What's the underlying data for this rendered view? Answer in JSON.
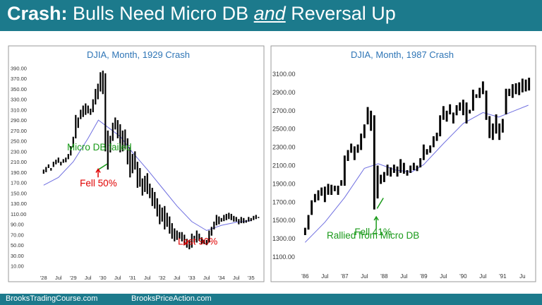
{
  "header": {
    "title_bold": "Crash:",
    "title_pre": "Bulls Need Micro DB",
    "title_em": "and",
    "title_post": "Reversal Up"
  },
  "footer": {
    "left": "BrooksTradingCourse.com",
    "right": "BrooksPriceAction.com"
  },
  "colors": {
    "header_bg": "#1c7a8c",
    "bar": "#000000",
    "moving_average": "#6f6fe0",
    "title_text": "#2e75b6",
    "annotation_red": "#e00000",
    "annotation_green": "#1a9a1a"
  },
  "chart_data": [
    {
      "type": "bar",
      "chart_style": "monthly price bars with moving average",
      "title": "DJIA, Month, 1929 Crash",
      "y_ticks": [
        "390.00",
        "370.00",
        "350.00",
        "330.00",
        "310.00",
        "290.00",
        "270.00",
        "250.00",
        "230.00",
        "210.00",
        "190.00",
        "170.00",
        "150.00",
        "130.00",
        "110.00",
        "90.00",
        "70.00",
        "50.00",
        "30.00",
        "10.00"
      ],
      "x_ticks": [
        "'28",
        "Jul",
        "'29",
        "Jul",
        "'30",
        "Jul",
        "'31",
        "Jul",
        "'32",
        "Jul",
        "'33",
        "Jul",
        "'34",
        "Jul",
        "'35"
      ],
      "ylim": [
        0,
        400
      ],
      "x_start": 1928,
      "annotations": [
        {
          "text": "Micro DB failed",
          "color": "green",
          "x": 1929.88,
          "y": 232
        },
        {
          "text": "Fell 50%",
          "color": "red",
          "x": 1929.85,
          "y": 163
        },
        {
          "text": "Lost 90%",
          "color": "red",
          "x": 1933.2,
          "y": 51
        }
      ],
      "series": [
        {
          "values": [
            [
              195,
              187
            ],
            [
              200,
              190
            ],
            [
              205,
              198
            ],
            [
              198,
              193
            ],
            [
              210,
              200
            ],
            [
              214,
              205
            ],
            [
              218,
              208
            ],
            [
              210,
              203
            ],
            [
              215,
              208
            ],
            [
              218,
              209
            ],
            [
              225,
              215
            ],
            [
              240,
              222
            ],
            [
              258,
              238
            ],
            [
              300,
              255
            ],
            [
              295,
              275
            ],
            [
              310,
              292
            ],
            [
              318,
              296
            ],
            [
              322,
              300
            ],
            [
              318,
              303
            ],
            [
              312,
              300
            ],
            [
              330,
              305
            ],
            [
              350,
              320
            ],
            [
              360,
              330
            ],
            [
              382,
              345
            ],
            [
              385,
              340
            ],
            [
              380,
              230
            ],
            [
              270,
              195
            ],
            [
              260,
              228
            ],
            [
              285,
              250
            ],
            [
              295,
              272
            ],
            [
              290,
              255
            ],
            [
              282,
              228
            ],
            [
              270,
              230
            ],
            [
              272,
              235
            ],
            [
              255,
              205
            ],
            [
              238,
              180
            ],
            [
              225,
              188
            ],
            [
              230,
              195
            ],
            [
              210,
              160
            ],
            [
              198,
              162
            ],
            [
              178,
              145
            ],
            [
              183,
              152
            ],
            [
              188,
              148
            ],
            [
              168,
              140
            ],
            [
              160,
              125
            ],
            [
              152,
              120
            ],
            [
              140,
              105
            ],
            [
              128,
              90
            ],
            [
              122,
              95
            ],
            [
              125,
              80
            ],
            [
              112,
              85
            ],
            [
              105,
              72
            ],
            [
              92,
              62
            ],
            [
              82,
              57
            ],
            [
              78,
              60
            ],
            [
              75,
              62
            ],
            [
              75,
              57
            ],
            [
              70,
              50
            ],
            [
              62,
              45
            ],
            [
              60,
              42
            ],
            [
              72,
              45
            ],
            [
              68,
              55
            ],
            [
              78,
              55
            ],
            [
              72,
              58
            ],
            [
              65,
              52
            ],
            [
              60,
              52
            ],
            [
              60,
              50
            ],
            [
              78,
              55
            ],
            [
              85,
              68
            ],
            [
              95,
              80
            ],
            [
              108,
              88
            ],
            [
              105,
              90
            ],
            [
              102,
              95
            ],
            [
              108,
              96
            ],
            [
              110,
              98
            ],
            [
              112,
              100
            ],
            [
              110,
              98
            ],
            [
              106,
              95
            ],
            [
              104,
              95
            ],
            [
              100,
              90
            ],
            [
              104,
              92
            ],
            [
              102,
              92
            ],
            [
              98,
              93
            ],
            [
              104,
              95
            ],
            [
              102,
              96
            ],
            [
              106,
              98
            ],
            [
              108,
              100
            ],
            [
              104,
              102
            ]
          ]
        },
        {
          "name": "",
          "values": [
            [
              1928,
              165
            ],
            [
              1928.5,
              180
            ],
            [
              1929,
              210
            ],
            [
              1929.5,
              255
            ],
            [
              1929.85,
              290
            ],
            [
              1930.2,
              275
            ],
            [
              1930.6,
              258
            ],
            [
              1931,
              228
            ],
            [
              1931.5,
              195
            ],
            [
              1932,
              160
            ],
            [
              1932.5,
              125
            ],
            [
              1933,
              95
            ],
            [
              1933.5,
              78
            ],
            [
              1934,
              88
            ],
            [
              1934.5,
              94
            ],
            [
              1935,
              97
            ]
          ]
        }
      ]
    },
    {
      "type": "bar",
      "chart_style": "monthly price bars with moving average",
      "title": "DJIA, Month, 1987 Crash",
      "y_ticks": [
        "3100.00",
        "2900.00",
        "2700.00",
        "2500.00",
        "2300.00",
        "2100.00",
        "1900.00",
        "1700.00",
        "1500.00",
        "1300.00",
        "1100.00"
      ],
      "x_ticks": [
        "'86",
        "Jul",
        "'87",
        "Jul",
        "'88",
        "Jul",
        "'89",
        "Jul",
        "'90",
        "Jul",
        "'91",
        "Ju"
      ],
      "ylim": [
        1000,
        3200
      ],
      "x_start": 1986,
      "annotations": [
        {
          "text": "Fell 41%",
          "color": "green",
          "x": 1987.72,
          "y": 1340
        },
        {
          "text": "Rallied from Micro DB",
          "color": "green",
          "x": 1987.72,
          "y": 1300
        }
      ],
      "series": [
        {
          "values": [
            [
              1420,
              1340
            ],
            [
              1560,
              1400
            ],
            [
              1720,
              1560
            ],
            [
              1790,
              1700
            ],
            [
              1830,
              1720
            ],
            [
              1860,
              1770
            ],
            [
              1870,
              1700
            ],
            [
              1900,
              1780
            ],
            [
              1890,
              1780
            ],
            [
              1880,
              1820
            ],
            [
              1880,
              1780
            ],
            [
              1940,
              1880
            ],
            [
              2210,
              1880
            ],
            [
              2270,
              2150
            ],
            [
              2340,
              2240
            ],
            [
              2310,
              2160
            ],
            [
              2330,
              2240
            ],
            [
              2450,
              2270
            ],
            [
              2550,
              2400
            ],
            [
              2740,
              2550
            ],
            [
              2700,
              2480
            ],
            [
              2650,
              1620
            ],
            [
              2100,
              1740
            ],
            [
              2000,
              1900
            ],
            [
              2030,
              1920
            ],
            [
              2110,
              1990
            ],
            [
              2080,
              1980
            ],
            [
              2110,
              2020
            ],
            [
              2090,
              1980
            ],
            [
              2170,
              2020
            ],
            [
              2130,
              2010
            ],
            [
              2050,
              1990
            ],
            [
              2100,
              2020
            ],
            [
              2130,
              2050
            ],
            [
              2100,
              2040
            ],
            [
              2180,
              2080
            ],
            [
              2330,
              2160
            ],
            [
              2280,
              2220
            ],
            [
              2320,
              2240
            ],
            [
              2420,
              2300
            ],
            [
              2460,
              2370
            ],
            [
              2650,
              2420
            ],
            [
              2750,
              2600
            ],
            [
              2700,
              2580
            ],
            [
              2770,
              2660
            ],
            [
              2680,
              2560
            ],
            [
              2760,
              2650
            ],
            [
              2790,
              2700
            ],
            [
              2820,
              2650
            ],
            [
              2790,
              2560
            ],
            [
              2710,
              2670
            ],
            [
              2930,
              2700
            ],
            [
              2880,
              2840
            ],
            [
              2950,
              2840
            ],
            [
              3020,
              2880
            ],
            [
              2920,
              2600
            ],
            [
              2640,
              2400
            ],
            [
              2560,
              2380
            ],
            [
              2660,
              2450
            ],
            [
              2560,
              2380
            ],
            [
              2610,
              2460
            ],
            [
              2940,
              2660
            ],
            [
              2940,
              2860
            ],
            [
              2990,
              2840
            ],
            [
              3000,
              2880
            ],
            [
              3010,
              2870
            ],
            [
              3050,
              2900
            ],
            [
              3040,
              2910
            ],
            [
              3060,
              2920
            ]
          ]
        },
        {
          "name": "",
          "values": [
            [
              1986,
              1260
            ],
            [
              1986.5,
              1480
            ],
            [
              1987,
              1750
            ],
            [
              1987.5,
              2070
            ],
            [
              1987.85,
              2120
            ],
            [
              1988.3,
              2050
            ],
            [
              1988.7,
              2030
            ],
            [
              1989,
              2110
            ],
            [
              1989.5,
              2340
            ],
            [
              1990,
              2560
            ],
            [
              1990.5,
              2680
            ],
            [
              1990.9,
              2630
            ],
            [
              1991.3,
              2700
            ],
            [
              1991.65,
              2760
            ]
          ]
        }
      ]
    }
  ]
}
